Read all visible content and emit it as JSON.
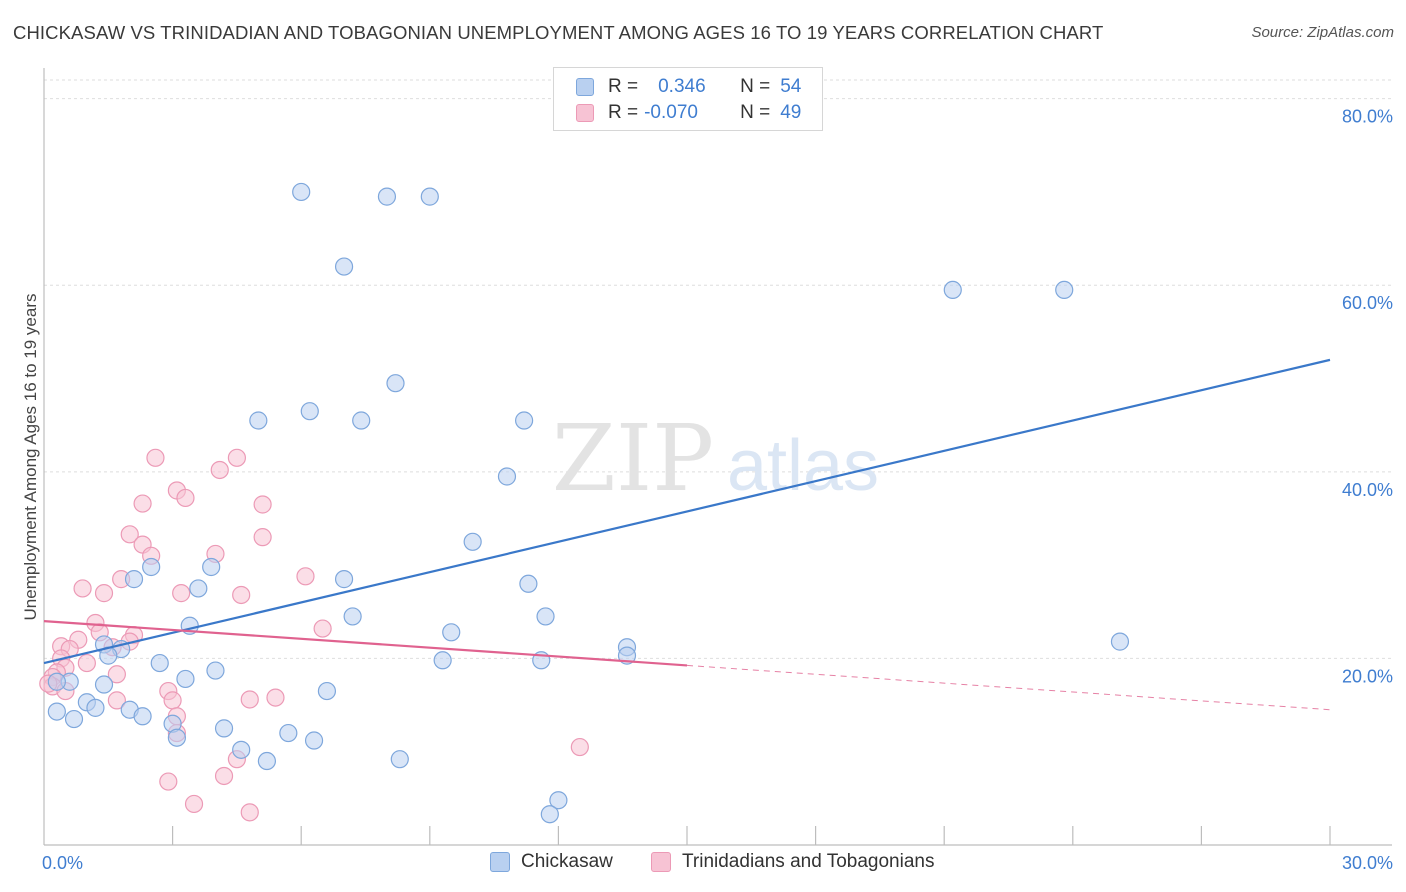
{
  "title": "CHICKASAW VS TRINIDADIAN AND TOBAGONIAN UNEMPLOYMENT AMONG AGES 16 TO 19 YEARS CORRELATION CHART",
  "source": "Source: ZipAtlas.com",
  "watermark": {
    "zip": "ZIP",
    "atlas": "atlas"
  },
  "colors": {
    "blue": "#3a78c9",
    "blue_fill": "#b9d0f0",
    "blue_stroke": "#7ea7dc",
    "pink": "#e0628f",
    "pink_fill": "#f7c3d4",
    "pink_stroke": "#ec9ab6",
    "axis_text": "#3f7dd0",
    "grid": "#dedede"
  },
  "legend": {
    "rows": [
      {
        "r_label": "R =",
        "r_value": "0.346",
        "n_label": "N =",
        "n_value": "54"
      },
      {
        "r_label": "R =",
        "r_value": "-0.070",
        "n_label": "N =",
        "n_value": "49"
      }
    ]
  },
  "bottom_legend": {
    "chickasaw": "Chickasaw",
    "trinidadian": "Trinidadians and Tobagonians"
  },
  "chart_data": {
    "type": "scatter",
    "title": "CHICKASAW VS TRINIDADIAN AND TOBAGONIAN UNEMPLOYMENT AMONG AGES 16 TO 19 YEARS CORRELATION CHART",
    "ylabel": "Unemployment Among Ages 16 to 19 years",
    "xlabel": "",
    "xlim": [
      0,
      30
    ],
    "ylim": [
      0,
      82
    ],
    "y_ticks": [
      {
        "value": 20,
        "label": "20.0%"
      },
      {
        "value": 40,
        "label": "40.0%"
      },
      {
        "value": 60,
        "label": "60.0%"
      },
      {
        "value": 80,
        "label": "80.0%"
      }
    ],
    "x_tick_labels": [
      {
        "value": 0,
        "label": "0.0%"
      },
      {
        "value": 30,
        "label": "30.0%"
      }
    ],
    "x_tick_marks": [
      3,
      6,
      9,
      12,
      15,
      18,
      21,
      24,
      27,
      30
    ],
    "series": [
      {
        "name": "Chickasaw",
        "color": "blue",
        "trend": {
          "x0": 0,
          "y0": 19.5,
          "x1": 30,
          "y1": 52.0,
          "dashed_from": null
        },
        "points": [
          [
            6.0,
            70.0
          ],
          [
            8.0,
            69.5
          ],
          [
            9.0,
            69.5
          ],
          [
            7.0,
            62.0
          ],
          [
            21.2,
            59.5
          ],
          [
            23.8,
            59.5
          ],
          [
            8.2,
            49.5
          ],
          [
            5.0,
            45.5
          ],
          [
            6.2,
            46.5
          ],
          [
            7.4,
            45.5
          ],
          [
            11.2,
            45.5
          ],
          [
            10.8,
            39.5
          ],
          [
            10.0,
            32.5
          ],
          [
            2.5,
            29.8
          ],
          [
            3.9,
            29.8
          ],
          [
            2.1,
            28.5
          ],
          [
            7.0,
            28.5
          ],
          [
            11.3,
            28.0
          ],
          [
            3.6,
            27.5
          ],
          [
            7.2,
            24.5
          ],
          [
            11.7,
            24.5
          ],
          [
            3.4,
            23.5
          ],
          [
            9.5,
            22.8
          ],
          [
            25.1,
            21.8
          ],
          [
            1.4,
            21.5
          ],
          [
            1.8,
            21.0
          ],
          [
            13.6,
            21.2
          ],
          [
            1.5,
            20.3
          ],
          [
            9.3,
            19.8
          ],
          [
            11.6,
            19.8
          ],
          [
            13.6,
            20.3
          ],
          [
            2.7,
            19.5
          ],
          [
            4.0,
            18.7
          ],
          [
            3.3,
            17.8
          ],
          [
            0.6,
            17.5
          ],
          [
            1.4,
            17.2
          ],
          [
            0.3,
            17.5
          ],
          [
            6.6,
            16.5
          ],
          [
            1.0,
            15.3
          ],
          [
            1.2,
            14.7
          ],
          [
            2.0,
            14.5
          ],
          [
            0.3,
            14.3
          ],
          [
            0.7,
            13.5
          ],
          [
            2.3,
            13.8
          ],
          [
            3.0,
            13.0
          ],
          [
            4.2,
            12.5
          ],
          [
            5.7,
            12.0
          ],
          [
            3.1,
            11.5
          ],
          [
            6.3,
            11.2
          ],
          [
            4.6,
            10.2
          ],
          [
            5.2,
            9.0
          ],
          [
            8.3,
            9.2
          ],
          [
            12.0,
            4.8
          ],
          [
            11.8,
            3.3
          ]
        ]
      },
      {
        "name": "Trinidadians and Tobagonians",
        "color": "pink",
        "trend": {
          "x0": 0,
          "y0": 24.0,
          "x1": 30,
          "y1": 14.5,
          "dashed_from": 15.0
        },
        "points": [
          [
            2.6,
            41.5
          ],
          [
            4.5,
            41.5
          ],
          [
            4.1,
            40.2
          ],
          [
            3.1,
            38.0
          ],
          [
            3.3,
            37.2
          ],
          [
            2.3,
            36.6
          ],
          [
            5.1,
            36.5
          ],
          [
            2.0,
            33.3
          ],
          [
            5.1,
            33.0
          ],
          [
            2.3,
            32.2
          ],
          [
            2.5,
            31.0
          ],
          [
            4.0,
            31.2
          ],
          [
            6.1,
            28.8
          ],
          [
            1.8,
            28.5
          ],
          [
            0.9,
            27.5
          ],
          [
            1.4,
            27.0
          ],
          [
            3.2,
            27.0
          ],
          [
            4.6,
            26.8
          ],
          [
            1.2,
            23.8
          ],
          [
            6.5,
            23.2
          ],
          [
            1.3,
            22.8
          ],
          [
            2.1,
            22.5
          ],
          [
            0.8,
            22.0
          ],
          [
            2.0,
            21.8
          ],
          [
            0.4,
            21.3
          ],
          [
            1.6,
            21.2
          ],
          [
            0.6,
            21.0
          ],
          [
            0.4,
            20.0
          ],
          [
            1.0,
            19.5
          ],
          [
            0.5,
            19.0
          ],
          [
            0.3,
            18.5
          ],
          [
            0.2,
            18.0
          ],
          [
            1.7,
            18.3
          ],
          [
            0.2,
            17.0
          ],
          [
            2.9,
            16.5
          ],
          [
            3.0,
            15.5
          ],
          [
            1.7,
            15.5
          ],
          [
            4.8,
            15.6
          ],
          [
            5.4,
            15.8
          ],
          [
            0.5,
            16.5
          ],
          [
            3.1,
            13.8
          ],
          [
            3.1,
            12.0
          ],
          [
            12.5,
            10.5
          ],
          [
            4.5,
            9.2
          ],
          [
            4.2,
            7.4
          ],
          [
            2.9,
            6.8
          ],
          [
            3.5,
            4.4
          ],
          [
            4.8,
            3.5
          ],
          [
            0.1,
            17.3
          ]
        ]
      }
    ]
  }
}
